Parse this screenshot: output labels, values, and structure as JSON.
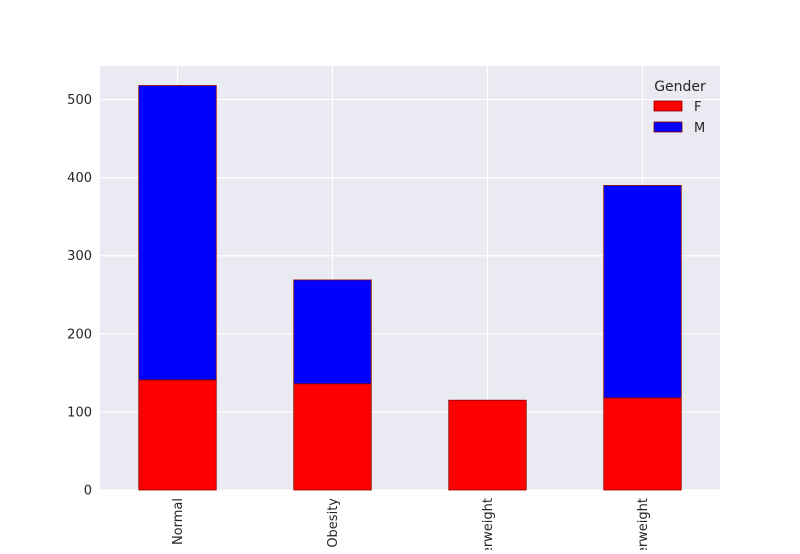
{
  "chart_data": {
    "type": "bar",
    "stacked": true,
    "categories": [
      "Normal",
      "Obesity",
      "Underweight",
      "Overweight"
    ],
    "series": [
      {
        "name": "F",
        "color": "#ff0000",
        "values": [
          141,
          136,
          115,
          118
        ]
      },
      {
        "name": "M",
        "color": "#0000ff",
        "values": [
          377,
          133,
          0,
          272
        ]
      }
    ],
    "legend": {
      "title": "Gender",
      "position": "top-right"
    },
    "ylim": [
      0,
      543
    ],
    "yticks": [
      0,
      100,
      200,
      300,
      400,
      500
    ],
    "xlabel": "",
    "ylabel": "",
    "grid": true,
    "colors": {
      "plot_background": "#eaeaf2",
      "grid": "#ffffff",
      "bar_edge": "#8b0000"
    }
  }
}
